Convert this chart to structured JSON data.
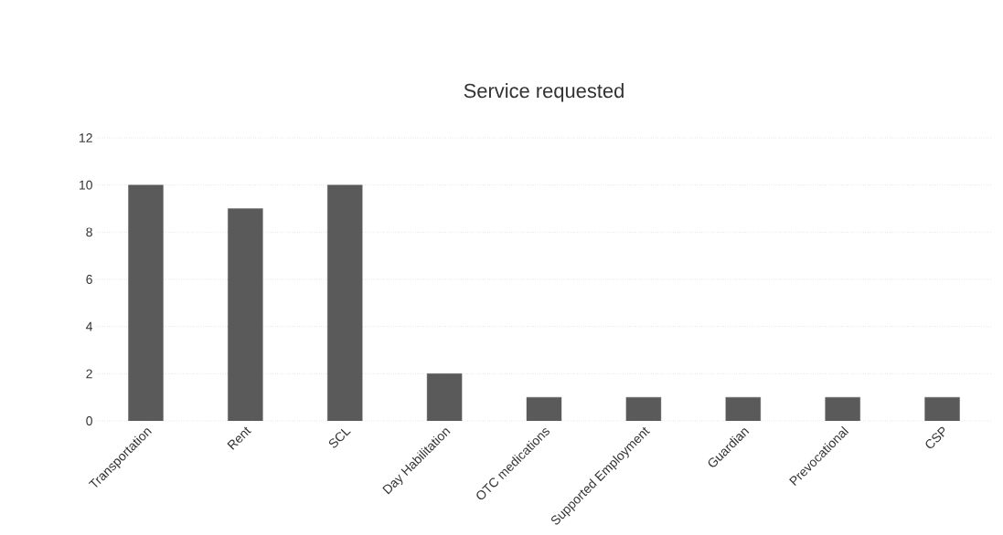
{
  "chart_data": {
    "type": "bar",
    "title": "Service requested",
    "categories": [
      "Transportation",
      "Rent",
      "SCL",
      "Day Habilitation",
      "OTC medications",
      "Supported Employment",
      "Guardian",
      "Prevocational",
      "CSP"
    ],
    "values": [
      10,
      9,
      10,
      2,
      1,
      1,
      1,
      1,
      1
    ],
    "color": "#5a5a5a",
    "ylim": [
      0,
      12
    ],
    "yticks": [
      0,
      2,
      4,
      6,
      8,
      10,
      12
    ],
    "grid": "y"
  }
}
